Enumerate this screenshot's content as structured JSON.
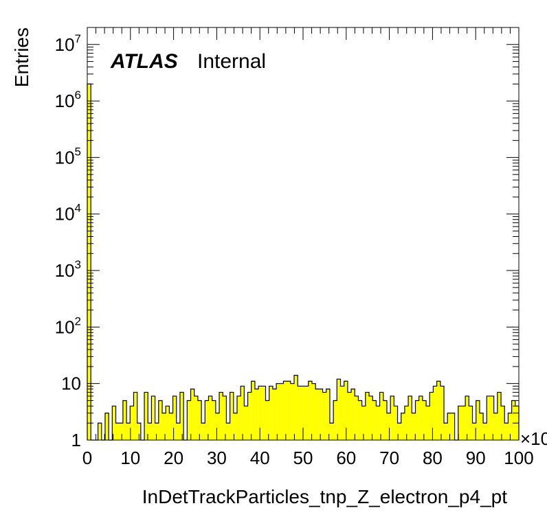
{
  "chart_data": {
    "type": "bar",
    "style": "histogram",
    "fill_color": "#ffff00",
    "line_color": "#000000",
    "title": "",
    "xlabel": "InDetTrackParticles_tnp_Z_electron_p4_pt",
    "ylabel": "Entries",
    "x_multiplier_label": "×10",
    "watermark": {
      "experiment": "ATLAS",
      "status": "Internal"
    },
    "xlim": [
      0,
      100
    ],
    "ylim": [
      1,
      20000000
    ],
    "log_y": true,
    "x_ticks": [
      "0",
      "10",
      "20",
      "30",
      "40",
      "50",
      "60",
      "70",
      "80",
      "90",
      "100"
    ],
    "y_ticks": [
      {
        "value": 1,
        "base": "1",
        "exp": ""
      },
      {
        "value": 10,
        "base": "10",
        "exp": ""
      },
      {
        "value": 100,
        "base": "10",
        "exp": "2"
      },
      {
        "value": 1000,
        "base": "10",
        "exp": "3"
      },
      {
        "value": 10000,
        "base": "10",
        "exp": "4"
      },
      {
        "value": 100000,
        "base": "10",
        "exp": "5"
      },
      {
        "value": 1000000,
        "base": "10",
        "exp": "6"
      },
      {
        "value": 10000000,
        "base": "10",
        "exp": "7"
      }
    ],
    "grid": false,
    "bin_width": 1,
    "values": [
      2000000,
      1,
      0,
      2,
      1,
      3,
      1,
      4,
      2,
      2,
      5,
      2,
      4,
      7,
      2,
      0,
      7,
      2,
      6,
      2,
      5,
      3,
      4,
      3,
      6,
      2,
      7,
      1,
      5,
      8,
      6,
      5,
      2,
      5,
      6,
      5,
      3,
      7,
      6,
      2,
      7,
      3,
      6,
      9,
      4,
      7,
      11,
      8,
      9,
      9,
      5,
      9,
      8,
      10,
      10,
      11,
      11,
      10,
      14,
      9,
      9,
      9,
      11,
      10,
      8,
      8,
      7,
      8,
      2,
      5,
      12,
      9,
      11,
      7,
      8,
      6,
      5,
      4,
      7,
      6,
      5,
      4,
      7,
      5,
      3,
      6,
      4,
      2,
      3,
      4,
      6,
      3,
      5,
      6,
      5,
      4,
      7,
      9,
      11,
      9,
      2,
      3,
      3,
      1,
      4,
      4,
      6,
      4,
      2,
      5,
      3,
      2,
      6,
      6,
      3,
      7,
      4,
      2,
      3,
      5,
      4
    ]
  }
}
